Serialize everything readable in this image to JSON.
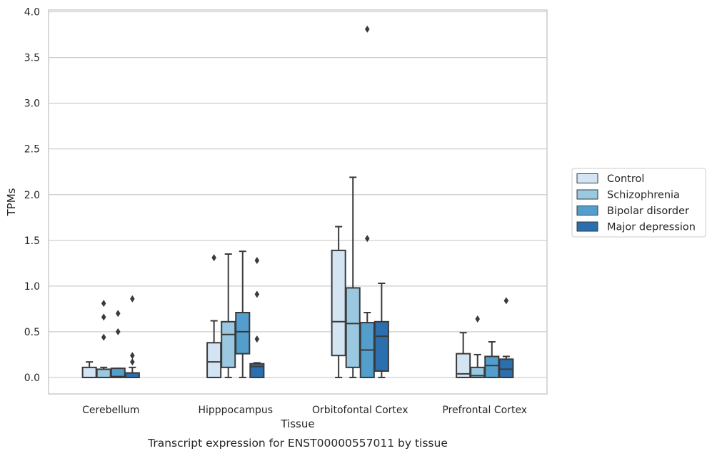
{
  "chart_data": {
    "type": "box",
    "title": "",
    "caption": "Transcript expression for ENST00000557011 by tissue",
    "xlabel": "Tissue",
    "ylabel": "TPMs",
    "ylim": [
      -0.18,
      4.02
    ],
    "yticks": [
      "0.0",
      "0.5",
      "1.0",
      "1.5",
      "2.0",
      "2.5",
      "3.0",
      "3.5",
      "4.0"
    ],
    "grid": "horizontal",
    "legend_position": "right",
    "categories": [
      "Cerebellum",
      "Hipppocampus",
      "Orbitofontal Cortex",
      "Prefrontal Cortex"
    ],
    "series": [
      {
        "name": "Control",
        "color": "#d3e4f3",
        "boxes": [
          {
            "whislo": 0.0,
            "q1": 0.0,
            "med": 0.0,
            "q3": 0.11,
            "whishi": 0.17,
            "fliers": []
          },
          {
            "whislo": 0.0,
            "q1": 0.0,
            "med": 0.17,
            "q3": 0.38,
            "whishi": 0.62,
            "fliers": [
              1.31
            ]
          },
          {
            "whislo": 0.0,
            "q1": 0.24,
            "med": 0.61,
            "q3": 1.39,
            "whishi": 1.65,
            "fliers": []
          },
          {
            "whislo": 0.0,
            "q1": 0.0,
            "med": 0.04,
            "q3": 0.26,
            "whishi": 0.49,
            "fliers": []
          }
        ]
      },
      {
        "name": "Schizophrenia",
        "color": "#9ac8e0",
        "boxes": [
          {
            "whislo": 0.0,
            "q1": 0.0,
            "med": 0.0,
            "q3": 0.09,
            "whishi": 0.11,
            "fliers": [
              0.81,
              0.66,
              0.44
            ]
          },
          {
            "whislo": 0.0,
            "q1": 0.11,
            "med": 0.47,
            "q3": 0.61,
            "whishi": 1.35,
            "fliers": []
          },
          {
            "whislo": 0.0,
            "q1": 0.11,
            "med": 0.59,
            "q3": 0.98,
            "whishi": 2.19,
            "fliers": []
          },
          {
            "whislo": 0.0,
            "q1": 0.0,
            "med": 0.02,
            "q3": 0.11,
            "whishi": 0.25,
            "fliers": [
              0.64
            ]
          }
        ]
      },
      {
        "name": "Bipolar disorder",
        "color": "#539ecd",
        "boxes": [
          {
            "whislo": 0.0,
            "q1": 0.0,
            "med": 0.01,
            "q3": 0.1,
            "whishi": 0.1,
            "fliers": [
              0.7,
              0.5
            ]
          },
          {
            "whislo": 0.0,
            "q1": 0.26,
            "med": 0.5,
            "q3": 0.71,
            "whishi": 1.38,
            "fliers": []
          },
          {
            "whislo": 0.0,
            "q1": 0.0,
            "med": 0.3,
            "q3": 0.6,
            "whishi": 0.71,
            "fliers": [
              3.81,
              1.52
            ]
          },
          {
            "whislo": 0.0,
            "q1": 0.0,
            "med": 0.13,
            "q3": 0.23,
            "whishi": 0.39,
            "fliers": []
          }
        ]
      },
      {
        "name": "Major depression",
        "color": "#2b6fae",
        "boxes": [
          {
            "whislo": 0.0,
            "q1": 0.0,
            "med": 0.0,
            "q3": 0.05,
            "whishi": 0.11,
            "fliers": [
              0.86,
              0.24,
              0.17
            ]
          },
          {
            "whislo": 0.0,
            "q1": 0.0,
            "med": 0.12,
            "q3": 0.15,
            "whishi": 0.16,
            "fliers": [
              1.28,
              0.91,
              0.42
            ]
          },
          {
            "whislo": 0.0,
            "q1": 0.07,
            "med": 0.45,
            "q3": 0.61,
            "whishi": 1.03,
            "fliers": []
          },
          {
            "whislo": 0.0,
            "q1": 0.0,
            "med": 0.09,
            "q3": 0.2,
            "whishi": 0.23,
            "fliers": [
              0.84
            ]
          }
        ]
      }
    ]
  }
}
